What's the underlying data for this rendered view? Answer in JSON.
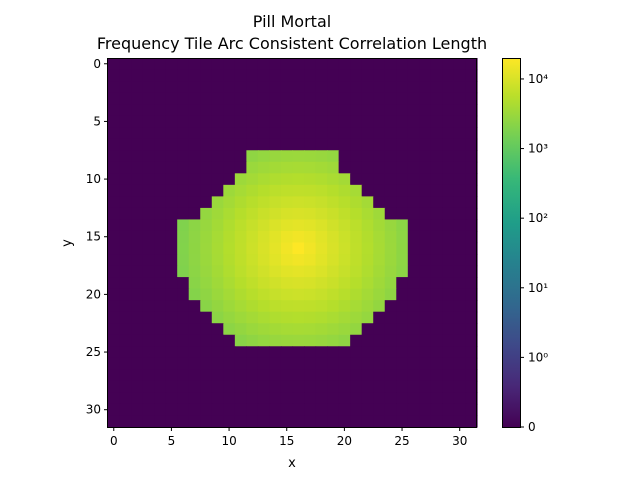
{
  "chart_data": {
    "type": "heatmap",
    "title": "Pill Mortal",
    "subtitle": "Frequency Tile Arc Consistent Correlation Length",
    "xlabel": "x",
    "ylabel": "y",
    "grid": "off",
    "colormap": "viridis",
    "colorbar_scale": "symlog",
    "width": 32,
    "height": 32,
    "xlim": [
      -0.5,
      31.5
    ],
    "ylim": [
      31.5,
      -0.5
    ],
    "x_ticks": [
      0,
      5,
      10,
      15,
      20,
      25,
      30
    ],
    "y_ticks": [
      0,
      5,
      10,
      15,
      20,
      25,
      30
    ],
    "shape": {
      "center_x": 16,
      "center_y": 16,
      "peak_value": 20000,
      "decay_scale": 4.3,
      "min_row": 8,
      "max_row": 24,
      "row_half_widths": {
        "8": 4,
        "9": 4,
        "10": 5,
        "11": 6,
        "12": 7,
        "13": 8,
        "14": 10,
        "15": 10,
        "16": 10,
        "17": 10,
        "18": 10,
        "19": 9,
        "20": 9,
        "21": 8,
        "22": 7,
        "23": 6,
        "24": 5
      }
    },
    "colorbar": {
      "min": 0,
      "max": 20000,
      "ticks": [
        {
          "value": 0,
          "label": "0"
        },
        {
          "value": 1,
          "label": "10⁰"
        },
        {
          "value": 10,
          "label": "10¹"
        },
        {
          "value": 100,
          "label": "10²"
        },
        {
          "value": 1000,
          "label": "10³"
        },
        {
          "value": 10000,
          "label": "10⁴"
        }
      ]
    },
    "colors": [
      "#440154",
      "#482878",
      "#3e4989",
      "#31688e",
      "#26828e",
      "#1f9e89",
      "#35b779",
      "#6ece58",
      "#b5de2b",
      "#fde725"
    ]
  }
}
